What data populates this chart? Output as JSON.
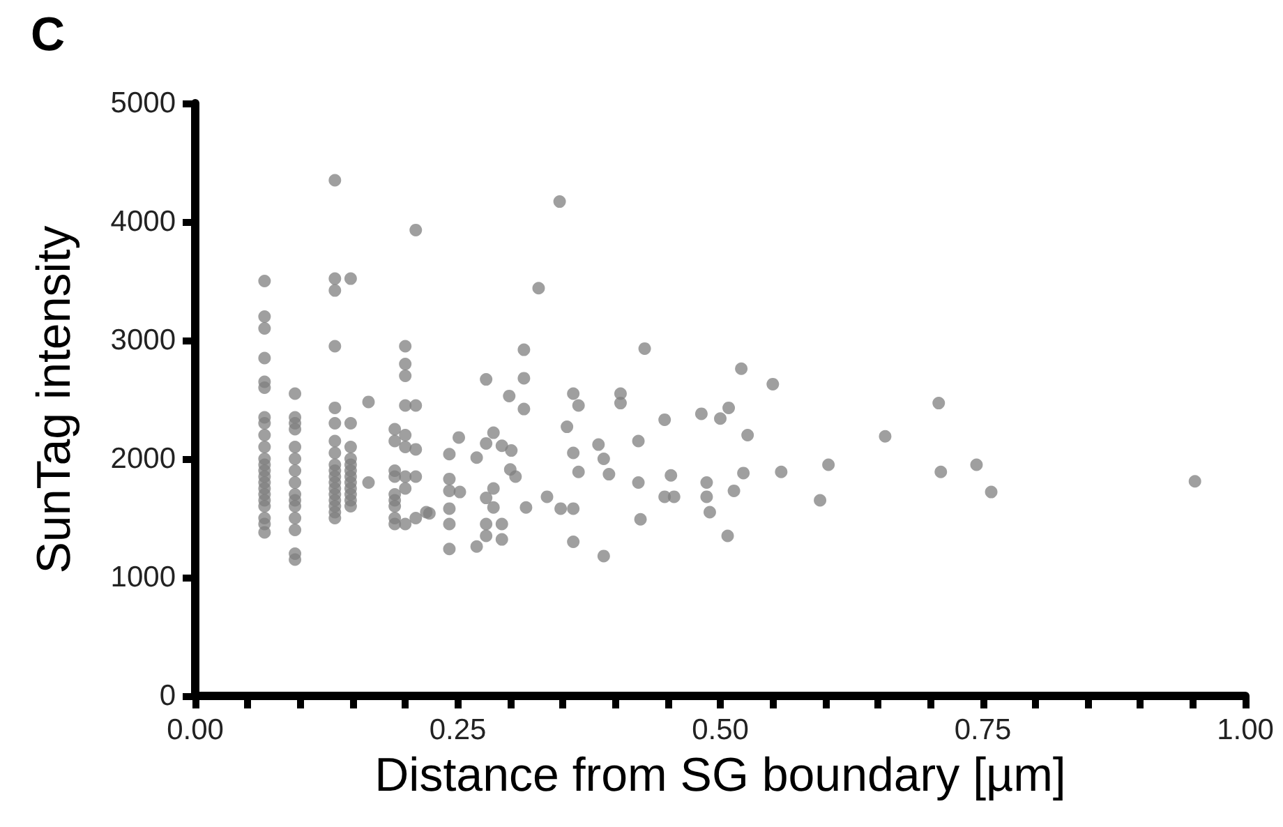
{
  "chart_data": {
    "type": "scatter",
    "xlabel": "Distance from SG boundary [µm]",
    "ylabel": "SunTag intensity",
    "annotations": [
      "C"
    ],
    "xlim": [
      0,
      1
    ],
    "ylim": [
      0,
      5000
    ],
    "xticks": [
      {
        "value": 0,
        "label": "0.00"
      },
      {
        "value": 0.05,
        "label": null
      },
      {
        "value": 0.1,
        "label": null
      },
      {
        "value": 0.15,
        "label": null
      },
      {
        "value": 0.2,
        "label": null
      },
      {
        "value": 0.25,
        "label": "0.25"
      },
      {
        "value": 0.3,
        "label": null
      },
      {
        "value": 0.35,
        "label": null
      },
      {
        "value": 0.4,
        "label": null
      },
      {
        "value": 0.45,
        "label": null
      },
      {
        "value": 0.5,
        "label": "0.50"
      },
      {
        "value": 0.55,
        "label": null
      },
      {
        "value": 0.6,
        "label": null
      },
      {
        "value": 0.65,
        "label": null
      },
      {
        "value": 0.7,
        "label": null
      },
      {
        "value": 0.75,
        "label": "0.75"
      },
      {
        "value": 0.8,
        "label": null
      },
      {
        "value": 0.85,
        "label": null
      },
      {
        "value": 0.9,
        "label": null
      },
      {
        "value": 0.95,
        "label": null
      },
      {
        "value": 1,
        "label": "1.00"
      }
    ],
    "yticks": [
      0,
      1000,
      2000,
      3000,
      4000,
      5000
    ],
    "grid": false,
    "marker": "circle",
    "series": [
      {
        "color": "#7f7f7f",
        "x": [
          0.066,
          0.066,
          0.066,
          0.066,
          0.066,
          0.066,
          0.066,
          0.066,
          0.066,
          0.066,
          0.066,
          0.066,
          0.066,
          0.066,
          0.066,
          0.066,
          0.066,
          0.066,
          0.066,
          0.066,
          0.066,
          0.066,
          0.095,
          0.095,
          0.095,
          0.095,
          0.095,
          0.095,
          0.095,
          0.095,
          0.095,
          0.095,
          0.095,
          0.095,
          0.095,
          0.095,
          0.095,
          0.133,
          0.133,
          0.133,
          0.133,
          0.133,
          0.133,
          0.133,
          0.133,
          0.133,
          0.133,
          0.133,
          0.133,
          0.133,
          0.133,
          0.133,
          0.133,
          0.133,
          0.133,
          0.148,
          0.148,
          0.148,
          0.148,
          0.148,
          0.148,
          0.148,
          0.148,
          0.148,
          0.148,
          0.148,
          0.148,
          0.165,
          0.165,
          0.19,
          0.19,
          0.19,
          0.19,
          0.19,
          0.19,
          0.19,
          0.19,
          0.19,
          0.2,
          0.2,
          0.2,
          0.2,
          0.2,
          0.2,
          0.2,
          0.2,
          0.2,
          0.21,
          0.21,
          0.21,
          0.21,
          0.21,
          0.22,
          0.347,
          0.327,
          0.313,
          0.313,
          0.313,
          0.277,
          0.299,
          0.284,
          0.251,
          0.242,
          0.277,
          0.268,
          0.292,
          0.301,
          0.3,
          0.305,
          0.242,
          0.242,
          0.252,
          0.284,
          0.277,
          0.284,
          0.315,
          0.335,
          0.348,
          0.36,
          0.242,
          0.242,
          0.277,
          0.292,
          0.277,
          0.292,
          0.268,
          0.242,
          0.36,
          0.389,
          0.223,
          0.36,
          0.365,
          0.354,
          0.36,
          0.365,
          0.384,
          0.389,
          0.394,
          0.405,
          0.405,
          0.428,
          0.422,
          0.422,
          0.424,
          0.447,
          0.453,
          0.447,
          0.456,
          0.52,
          0.55,
          0.482,
          0.5,
          0.508,
          0.526,
          0.708,
          0.657,
          0.487,
          0.487,
          0.49,
          0.513,
          0.507,
          0.522,
          0.558,
          0.603,
          0.595,
          0.71,
          0.744,
          0.758,
          0.952
        ],
        "values": [
          3500,
          3200,
          3100,
          2850,
          2650,
          2600,
          2350,
          2300,
          2200,
          2100,
          2000,
          1950,
          1900,
          1850,
          1800,
          1750,
          1700,
          1650,
          1600,
          1500,
          1450,
          1380,
          2550,
          2350,
          2300,
          2250,
          2100,
          2000,
          1900,
          1800,
          1700,
          1650,
          1600,
          1500,
          1400,
          1200,
          1150,
          4350,
          3520,
          3420,
          2950,
          2430,
          2300,
          2150,
          2050,
          1950,
          1900,
          1850,
          1800,
          1750,
          1700,
          1650,
          1600,
          1550,
          1500,
          3520,
          2300,
          2100,
          2000,
          1950,
          1900,
          1850,
          1800,
          1750,
          1700,
          1650,
          1600,
          2480,
          1800,
          2250,
          2150,
          1900,
          1850,
          1700,
          1650,
          1600,
          1500,
          1450,
          2950,
          2800,
          2700,
          2450,
          2200,
          2100,
          1850,
          1750,
          1450,
          3930,
          2450,
          2080,
          1850,
          1500,
          1550,
          4170,
          3440,
          2920,
          2680,
          2420,
          2670,
          2530,
          2220,
          2180,
          2040,
          2130,
          2010,
          2110,
          2070,
          1910,
          1850,
          1830,
          1730,
          1720,
          1750,
          1670,
          1590,
          1590,
          1680,
          1580,
          1580,
          1580,
          1450,
          1450,
          1450,
          1350,
          1320,
          1260,
          1240,
          1300,
          1180,
          1540,
          2550,
          2450,
          2270,
          2050,
          1890,
          2120,
          2000,
          1870,
          2550,
          2470,
          2930,
          2150,
          1800,
          1490,
          2330,
          1860,
          1680,
          1680,
          2760,
          2630,
          2380,
          2340,
          2430,
          2200,
          2470,
          2190,
          1800,
          1680,
          1550,
          1730,
          1350,
          1880,
          1890,
          1950,
          1650,
          1890,
          1950,
          1720,
          1810
        ]
      }
    ]
  }
}
